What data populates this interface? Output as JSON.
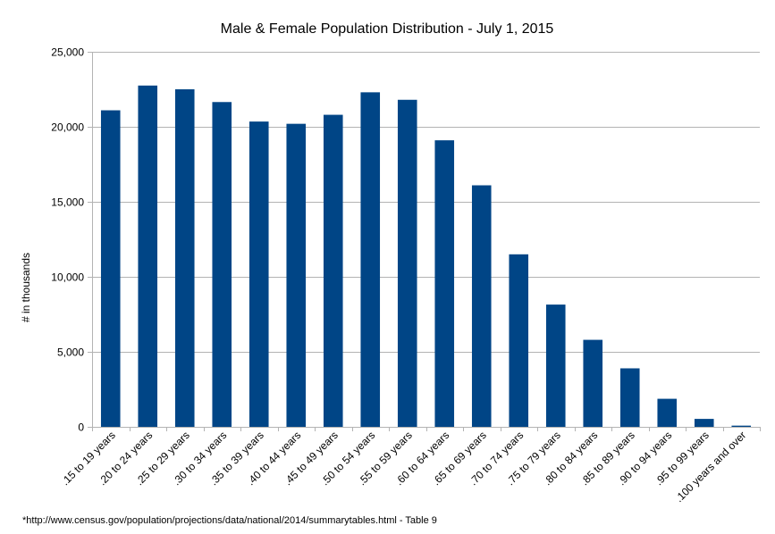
{
  "chart_data": {
    "type": "bar",
    "title": "Male & Female Population Distribution - July 1, 2015",
    "xlabel": "",
    "ylabel": "# in thousands",
    "ylim": [
      0,
      25000
    ],
    "yticks": [
      "0",
      "5,000",
      "10,000",
      "15,000",
      "20,000",
      "25,000"
    ],
    "ytick_values": [
      0,
      5000,
      10000,
      15000,
      20000,
      25000
    ],
    "grid": true,
    "legend": "none",
    "bar_color": "#004586",
    "categories": [
      ".15 to 19 years",
      ".20 to 24 years",
      ".25 to 29 years",
      ".30 to 34 years",
      ".35 to 39 years",
      ".40 to 44 years",
      ".45 to 49 years",
      ".50 to 54 years",
      ".55 to 59 years",
      ".60 to 64 years",
      ".65 to 69 years",
      ".70 to 74 years",
      ".75 to 79 years",
      ".80 to 84 years",
      ".85 to 89 years",
      ".90 to 94 years",
      ".95 to 99 years",
      ".100 years and over"
    ],
    "values": [
      21100,
      22750,
      22500,
      21650,
      20350,
      20200,
      20800,
      22300,
      21800,
      19100,
      16100,
      11500,
      8150,
      5800,
      3900,
      1870,
      530,
      80
    ]
  },
  "footnote": "*http://www.census.gov/population/projections/data/national/2014/summarytables.html - Table 9"
}
